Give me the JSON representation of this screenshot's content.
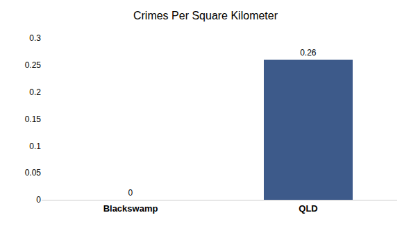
{
  "chart_data": {
    "type": "bar",
    "title": "Crimes Per Square Kilometer",
    "categories": [
      "Blackswamp",
      "QLD"
    ],
    "values": [
      0,
      0.26
    ],
    "color": "#3d5a8a",
    "ylim": [
      0,
      0.3
    ],
    "yticks": [
      0,
      0.05,
      0.1,
      0.15,
      0.2,
      0.25,
      0.3
    ],
    "grid": false,
    "data_labels": true
  }
}
